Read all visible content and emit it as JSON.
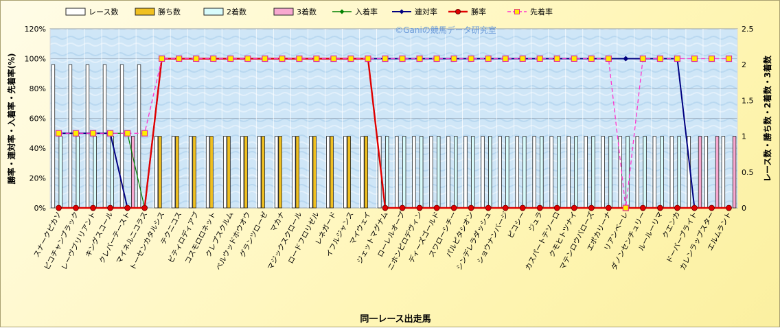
{
  "chart_data": {
    "type": "bar",
    "watermark": "©Ganiの競馬データ研究室",
    "xlabel": "同一レース出走馬",
    "ylabel_left": "勝率・連対率・入着率・先着率(%)",
    "ylabel_right": "レース数・勝ち数・2着数・3着数",
    "left_ticks": [
      "0%",
      "20%",
      "40%",
      "60%",
      "80%",
      "100%",
      "120%"
    ],
    "right_ticks": [
      "0",
      "0.5",
      "1",
      "1.5",
      "2",
      "2.5"
    ],
    "ylim_left": [
      0,
      120
    ],
    "ylim_right": [
      0,
      2.5
    ],
    "grid": true,
    "legend_position": "top",
    "categories": [
      "スナークピカソ",
      "ピコチャンブラック",
      "レーヴブリリアント",
      "キングスコール",
      "クレバーテースト",
      "マイネルニコラス",
      "トーセンカタルシス",
      "テクニコス",
      "ビティロディアブ",
      "コスモロロネット",
      "クレプスクルム",
      "ベルウッドホウオウ",
      "グランツローゼ",
      "マカナ",
      "マジックスクロール",
      "ロードフロリゼル",
      "レネガード",
      "イフルジャンス",
      "マイウェイ",
      "ジェットマグナム",
      "ローレルオープ",
      "ニホンピロデヴィン",
      "ディーズゴールド",
      "スワローシチー",
      "パルピタシオン",
      "シンデレラダッシュ",
      "ショウナンバージ",
      "ピコシー",
      "ジュラ",
      "カスパートテソーロ",
      "クモヒトツナイ",
      "マテンロウバローズ",
      "エポカリーナ",
      "リアンベーレ",
      "ダノンセンチュリー",
      "ルールーリマ",
      "クエンカ",
      "ドーバーブライト",
      "カレンラップスター",
      "エルムラント"
    ],
    "series": [
      {
        "name": "レース数",
        "axis": "right",
        "color": "#ffffff",
        "values": [
          2,
          2,
          2,
          2,
          2,
          2,
          1,
          1,
          1,
          1,
          1,
          1,
          1,
          1,
          1,
          1,
          1,
          1,
          1,
          1,
          1,
          1,
          1,
          1,
          1,
          1,
          1,
          1,
          1,
          1,
          1,
          1,
          1,
          1,
          1,
          1,
          1,
          1,
          1,
          1
        ]
      },
      {
        "name": "勝ち数",
        "axis": "right",
        "color": "#f0c020",
        "values": [
          0,
          0,
          0,
          0,
          0,
          0,
          1,
          1,
          1,
          1,
          1,
          1,
          1,
          1,
          1,
          1,
          1,
          1,
          1,
          0,
          0,
          0,
          0,
          0,
          0,
          0,
          0,
          0,
          0,
          0,
          0,
          0,
          0,
          0,
          0,
          0,
          0,
          0,
          0,
          0
        ]
      },
      {
        "name": "2着数",
        "axis": "right",
        "color": "#d8fcfc",
        "values": [
          1,
          1,
          1,
          1,
          0,
          0,
          0,
          0,
          0,
          0,
          0,
          0,
          0,
          0,
          0,
          0,
          0,
          0,
          0,
          1,
          1,
          1,
          1,
          1,
          1,
          1,
          1,
          1,
          1,
          1,
          1,
          1,
          1,
          1,
          1,
          1,
          1,
          0,
          0,
          0
        ]
      },
      {
        "name": "3着数",
        "axis": "right",
        "color": "#f8a8d0",
        "values": [
          0,
          0,
          0,
          0,
          1,
          0,
          0,
          0,
          0,
          0,
          0,
          0,
          0,
          0,
          0,
          0,
          0,
          0,
          0,
          0,
          0,
          0,
          0,
          0,
          0,
          0,
          0,
          0,
          0,
          0,
          0,
          0,
          0,
          0,
          0,
          0,
          0,
          1,
          1,
          1
        ]
      },
      {
        "name": "入着率",
        "axis": "left",
        "color": "#008000",
        "values": [
          50,
          50,
          50,
          50,
          50,
          0,
          100,
          100,
          100,
          100,
          100,
          100,
          100,
          100,
          100,
          100,
          100,
          100,
          100,
          100,
          100,
          100,
          100,
          100,
          100,
          100,
          100,
          100,
          100,
          100,
          100,
          100,
          100,
          100,
          100,
          100,
          100,
          0,
          0,
          0
        ]
      },
      {
        "name": "連対率",
        "axis": "left",
        "color": "#000080",
        "values": [
          50,
          50,
          50,
          50,
          0,
          0,
          100,
          100,
          100,
          100,
          100,
          100,
          100,
          100,
          100,
          100,
          100,
          100,
          100,
          100,
          100,
          100,
          100,
          100,
          100,
          100,
          100,
          100,
          100,
          100,
          100,
          100,
          100,
          100,
          100,
          100,
          100,
          0,
          0,
          0
        ]
      },
      {
        "name": "勝率",
        "axis": "left",
        "color": "#e00000",
        "values": [
          0,
          0,
          0,
          0,
          0,
          0,
          100,
          100,
          100,
          100,
          100,
          100,
          100,
          100,
          100,
          100,
          100,
          100,
          100,
          0,
          0,
          0,
          0,
          0,
          0,
          0,
          0,
          0,
          0,
          0,
          0,
          0,
          0,
          0,
          0,
          0,
          0,
          0,
          0,
          0
        ]
      },
      {
        "name": "先着率",
        "axis": "left",
        "color": "#ff33cc",
        "values": [
          50,
          50,
          50,
          50,
          50,
          50,
          100,
          100,
          100,
          100,
          100,
          100,
          100,
          100,
          100,
          100,
          100,
          100,
          100,
          100,
          100,
          100,
          100,
          100,
          100,
          100,
          100,
          100,
          100,
          100,
          100,
          100,
          100,
          0,
          100,
          100,
          100,
          100,
          100,
          100
        ]
      }
    ]
  }
}
